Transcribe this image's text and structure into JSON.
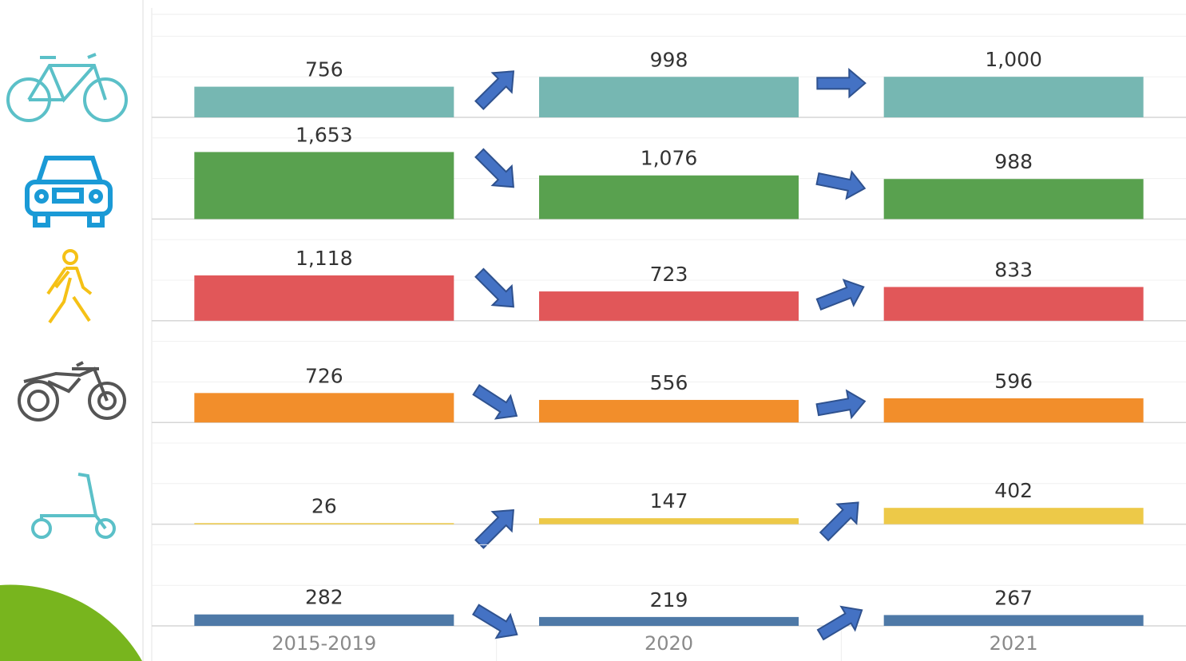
{
  "chart_data": {
    "type": "bar",
    "categories": [
      "2015-2019",
      "2020",
      "2021"
    ],
    "ylim": [
      0,
      2500
    ],
    "yticks": [
      0,
      1000,
      2000
    ],
    "grid": true,
    "series": [
      {
        "color": "#76b7b2",
        "values": [
          756,
          998,
          1000
        ],
        "value_labels": [
          "756",
          "998",
          "1,000"
        ]
      },
      {
        "color": "#59a14f",
        "values": [
          1653,
          1076,
          988
        ],
        "value_labels": [
          "1,653",
          "1,076",
          "988"
        ]
      },
      {
        "color": "#e15759",
        "values": [
          1118,
          723,
          833
        ],
        "value_labels": [
          "1,118",
          "723",
          "833"
        ]
      },
      {
        "color": "#f28e2b",
        "values": [
          726,
          556,
          596
        ],
        "value_labels": [
          "726",
          "556",
          "596"
        ]
      },
      {
        "color": "#edc948",
        "values": [
          26,
          147,
          402
        ],
        "value_labels": [
          "26",
          "147",
          "402"
        ]
      },
      {
        "color": "#4e79a7",
        "values": [
          282,
          219,
          267
        ],
        "value_labels": [
          "282",
          "219",
          "267"
        ]
      }
    ]
  }
}
